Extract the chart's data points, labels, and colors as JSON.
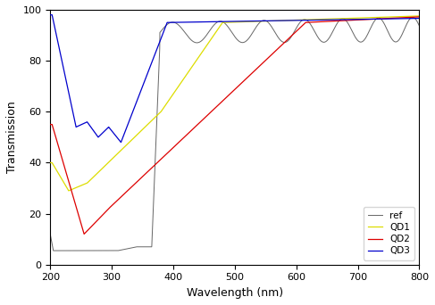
{
  "title": "",
  "xlabel": "Wavelength (nm)",
  "ylabel": "Transmission",
  "xlim": [
    200,
    800
  ],
  "ylim": [
    0,
    100
  ],
  "xticks": [
    200,
    300,
    400,
    500,
    600,
    700,
    800
  ],
  "yticks": [
    0,
    20,
    40,
    60,
    80,
    100
  ],
  "legend_labels": [
    "ref",
    "QD1",
    "QD2",
    "QD3"
  ],
  "colors": {
    "ref": "#666666",
    "QD1": "#dddd00",
    "QD2": "#dd0000",
    "QD3": "#0000cc"
  },
  "figsize": [
    4.87,
    3.42
  ],
  "dpi": 100
}
